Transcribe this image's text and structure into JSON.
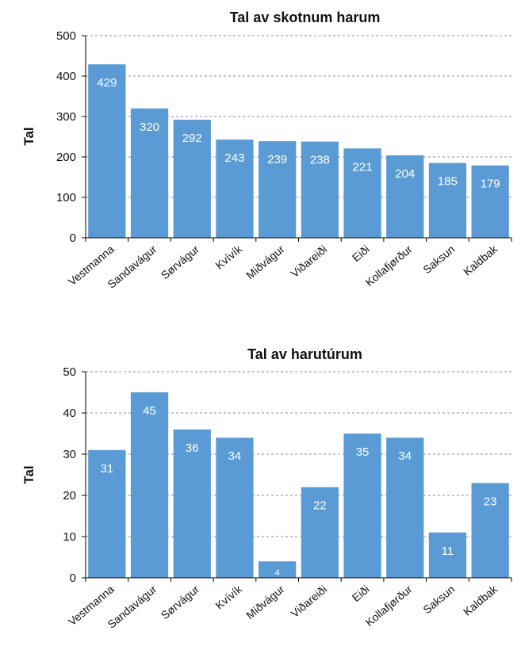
{
  "chart_data": [
    {
      "type": "bar",
      "title": "Tal av skotnum harum",
      "ylabel": "Tal",
      "xlabel": "",
      "ylim": [
        0,
        500
      ],
      "yticks": [
        0,
        100,
        200,
        300,
        400,
        500
      ],
      "grid": true,
      "bar_color": "#5b9bd5",
      "data_label_color": "#ffffff",
      "categories": [
        "Vestmanna",
        "Sandavágur",
        "Sørvágur",
        "Kvívík",
        "Miðvágur",
        "Viðareiði",
        "Eiði",
        "Kollafjørður",
        "Saksun",
        "Kaldbak"
      ],
      "values": [
        429,
        320,
        292,
        243,
        239,
        238,
        221,
        204,
        185,
        179
      ]
    },
    {
      "type": "bar",
      "title": "Tal av harutúrum",
      "ylabel": "Tal",
      "xlabel": "",
      "ylim": [
        0,
        50
      ],
      "yticks": [
        0,
        10,
        20,
        30,
        40,
        50
      ],
      "grid": true,
      "bar_color": "#5b9bd5",
      "data_label_color": "#ffffff",
      "categories": [
        "Vestmanna",
        "Sandavágur",
        "Sørvágur",
        "Kvívík",
        "Miðvágur",
        "Viðareiði",
        "Eiði",
        "Kollafjørður",
        "Saksun",
        "Kaldbak"
      ],
      "values": [
        31,
        45,
        36,
        34,
        4,
        22,
        35,
        34,
        11,
        23
      ]
    }
  ]
}
